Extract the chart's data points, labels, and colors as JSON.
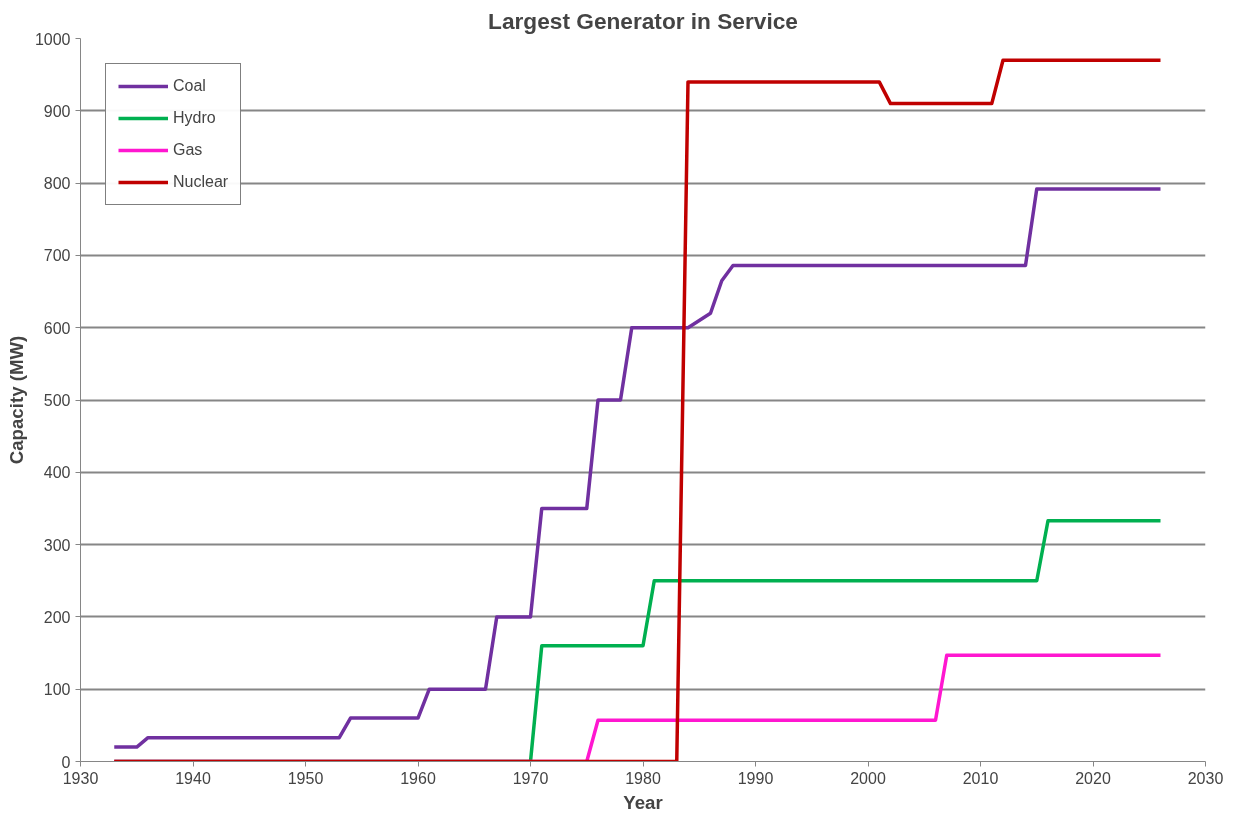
{
  "chart_data": {
    "type": "line",
    "title": "Largest Generator in Service",
    "xlabel": "Year",
    "ylabel": "Capacity (MW)",
    "xlim": [
      1930,
      2030
    ],
    "xticks": [
      1930,
      1940,
      1950,
      1960,
      1970,
      1980,
      1990,
      2000,
      2010,
      2020,
      2030
    ],
    "ylim": [
      0,
      1000
    ],
    "yticks": [
      0,
      100,
      200,
      300,
      400,
      500,
      600,
      700,
      800,
      900,
      1000
    ],
    "grid": "y",
    "legend": "top left",
    "marker": "none",
    "line_style": "solid",
    "series": [
      {
        "name": "Coal",
        "color": "#7030a0",
        "x": [
          1933,
          1935,
          1936,
          1953,
          1954,
          1960,
          1961,
          1966,
          1967,
          1970,
          1971,
          1975,
          1976,
          1978,
          1979,
          1984,
          1986,
          1987,
          1988,
          2014,
          2015,
          2026
        ],
        "values": [
          20,
          20,
          33,
          33,
          60,
          60,
          100,
          100,
          200,
          200,
          350,
          350,
          500,
          500,
          600,
          600,
          620,
          665,
          686,
          686,
          792,
          792
        ]
      },
      {
        "name": "Hydro",
        "color": "#00b050",
        "x": [
          1933,
          1970,
          1971,
          1980,
          1981,
          2015,
          2016,
          2026
        ],
        "values": [
          0,
          0,
          160,
          160,
          250,
          250,
          333,
          333
        ]
      },
      {
        "name": "Gas",
        "color": "#ff17d0",
        "x": [
          1933,
          1975,
          1976,
          2006,
          2007,
          2026
        ],
        "values": [
          0,
          0,
          57,
          57,
          147,
          147
        ]
      },
      {
        "name": "Nuclear",
        "color": "#c00000",
        "x": [
          1933,
          1983,
          1984,
          2001,
          2002,
          2011,
          2012,
          2026
        ],
        "values": [
          0,
          0,
          940,
          940,
          910,
          910,
          970,
          970
        ]
      }
    ]
  }
}
